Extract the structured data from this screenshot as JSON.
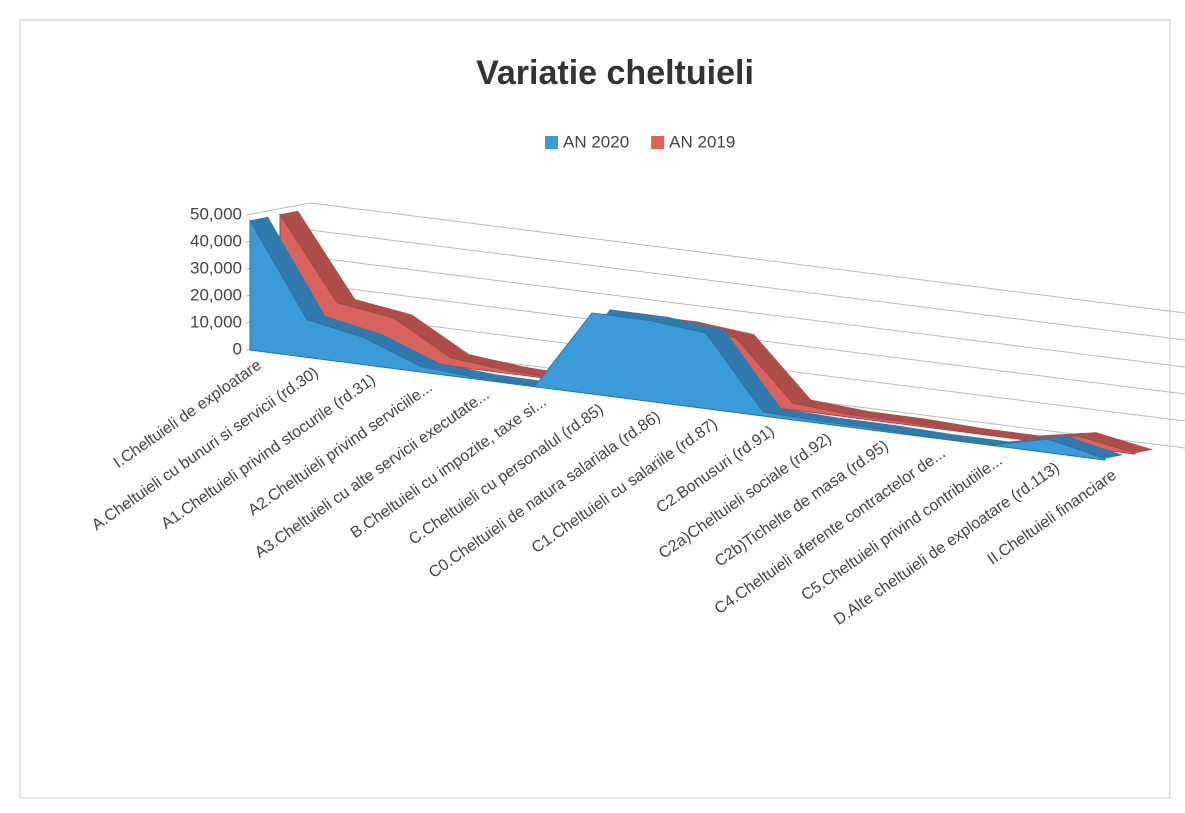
{
  "chart_data": {
    "type": "area3d",
    "title": "Variatie cheltuieli",
    "categories": [
      "I.Cheltuieli de exploatare",
      "A.Cheltuieli cu bunuri si servicii (rd.30)",
      "A1.Cheltuieli privind stocurile (rd.31)",
      "A2.Cheltuieli privind serviciile...",
      "A3.Cheltuieli cu alte servicii executate...",
      "B.Cheltuieli cu impozite, taxe si...",
      "C.Cheltuieli cu personalul (rd.85)",
      "C0.Cheltuieli de natura salariala (rd.86)",
      "C1.Cheltuieli cu salariile (rd.87)",
      "C2.Bonusuri (rd.91)",
      "C2a)Cheltuieli sociale (rd.92)",
      "C2b)Tichelte de masa (rd.95)",
      "C4.Cheltuieli aferente contractelor de...",
      "C5.Cheltuieli privind contributiile...",
      "D.Alte cheltuieli de exploatare (rd.113)",
      "II.Cheltuieli financiare"
    ],
    "series": [
      {
        "name": "AN 2020",
        "color": "#3b9ad8",
        "values": [
          48000,
          14000,
          10000,
          2000,
          500,
          200,
          30000,
          30000,
          28000,
          1500,
          800,
          700,
          100,
          100,
          5000,
          500
        ]
      },
      {
        "name": "AN 2019",
        "color": "#d9625c",
        "values": [
          48000,
          18000,
          15000,
          3000,
          1000,
          300,
          26000,
          26000,
          24000,
          2500,
          1000,
          900,
          100,
          100,
          4000,
          300
        ]
      }
    ],
    "ylim": [
      0,
      50000
    ],
    "yticks": [
      0,
      {
        "value": 10000,
        "label": "10,000"
      },
      {
        "value": 20000,
        "label": "20,000"
      },
      {
        "value": 30000,
        "label": "30,000"
      },
      {
        "value": 40000,
        "label": "40,000"
      },
      {
        "value": 50000,
        "label": "50,000"
      }
    ],
    "grid": true,
    "legend": "top"
  }
}
